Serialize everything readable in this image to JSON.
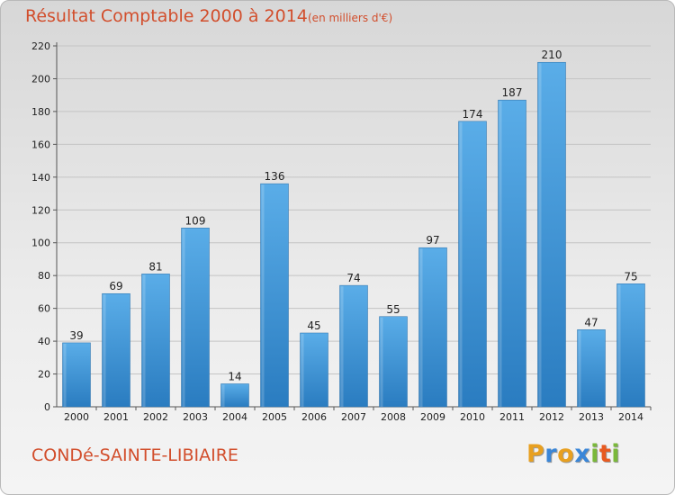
{
  "header": {
    "title": "Résultat Comptable 2000 à 2014",
    "subtitle": "(en milliers d'€)"
  },
  "footer": {
    "place": "CONDé-SAINTE-LIBIAIRE",
    "brand": {
      "letters": [
        "P",
        "r",
        "o",
        "x",
        "i",
        "t",
        "i"
      ],
      "colors": [
        "#e8a020",
        "#3a86d8",
        "#e8a020",
        "#3a86d8",
        "#7ab83a",
        "#e85a20",
        "#7ab83a"
      ]
    }
  },
  "colors": {
    "accent": "#d24e2c",
    "bar_light": "#5aade8",
    "bar_dark": "#2a7cc0"
  },
  "chart_data": {
    "type": "bar",
    "categories": [
      "2000",
      "2001",
      "2002",
      "2003",
      "2004",
      "2005",
      "2006",
      "2007",
      "2008",
      "2009",
      "2010",
      "2011",
      "2012",
      "2013",
      "2014"
    ],
    "values": [
      39,
      69,
      81,
      109,
      14,
      136,
      45,
      74,
      55,
      97,
      174,
      187,
      210,
      47,
      75
    ],
    "title": "Résultat Comptable 2000 à 2014",
    "xlabel": "",
    "ylabel": "",
    "ylim": [
      0,
      220
    ],
    "yticks": [
      0,
      20,
      40,
      60,
      80,
      100,
      120,
      140,
      160,
      180,
      200,
      220
    ],
    "grid": true,
    "legend": "none"
  }
}
